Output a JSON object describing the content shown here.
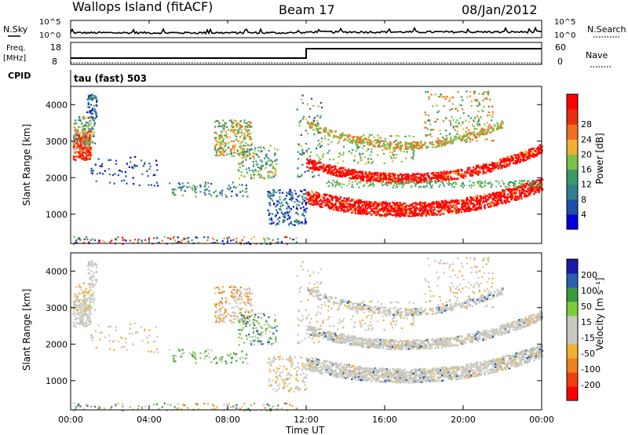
{
  "header": {
    "station": "Wallops Island (fitACF)",
    "beam": "Beam 17",
    "date": "08/Jan/2012"
  },
  "labels": {
    "n_sky": "N.Sky",
    "n_search": "N.Search",
    "freq": "Freq.",
    "freq_unit": "[MHz]",
    "nave": "Nave",
    "cpid": "CPID",
    "cpid_value": "tau (fast) 503",
    "time_axis": "Time UT",
    "slant_range": "Slant Range [km]",
    "power_label": "Power [dB]",
    "velocity_label": "Velocity [m s⁻¹]"
  },
  "colors": {
    "power_scale": [
      "#0000dd",
      "#1f4fa8",
      "#2f7f8f",
      "#3a9a6a",
      "#7cc24a",
      "#f0b030",
      "#f07020",
      "#e83010",
      "#ff0000"
    ],
    "velocity_scale": [
      "#1a1aa8",
      "#2a5fb0",
      "#3a9a40",
      "#7ccd3a",
      "#c8c8c0",
      "#c8c8c0",
      "#f0b030",
      "#f08020",
      "#f04010",
      "#ff0000"
    ]
  },
  "chart_data": [
    {
      "type": "line",
      "name": "noise-panel",
      "left_ticks": [
        "10^5",
        "10^0"
      ],
      "right_ticks": [
        "10^5",
        "10^0"
      ]
    },
    {
      "type": "line",
      "name": "freq-panel",
      "left_ticks": [
        "18",
        "8"
      ],
      "right_ticks": [
        "60",
        "0"
      ],
      "freq_step_time": "12:00"
    },
    {
      "type": "heatmap",
      "name": "power",
      "x_ticks": [
        "00:00",
        "04:00",
        "08:00",
        "12:00",
        "16:00",
        "20:00",
        "00:00"
      ],
      "y_ticks": [
        1000,
        2000,
        3000,
        4000
      ],
      "ylim": [
        200,
        4500
      ],
      "colorbar_ticks": [
        4,
        8,
        12,
        16,
        20,
        24,
        28
      ]
    },
    {
      "type": "heatmap",
      "name": "velocity",
      "x_ticks": [
        "00:00",
        "04:00",
        "08:00",
        "12:00",
        "16:00",
        "20:00",
        "00:00"
      ],
      "y_ticks": [
        1000,
        2000,
        3000,
        4000
      ],
      "ylim": [
        200,
        4500
      ],
      "colorbar_ticks": [
        200,
        100,
        50,
        15,
        -15,
        -50,
        -100,
        -200
      ]
    }
  ]
}
